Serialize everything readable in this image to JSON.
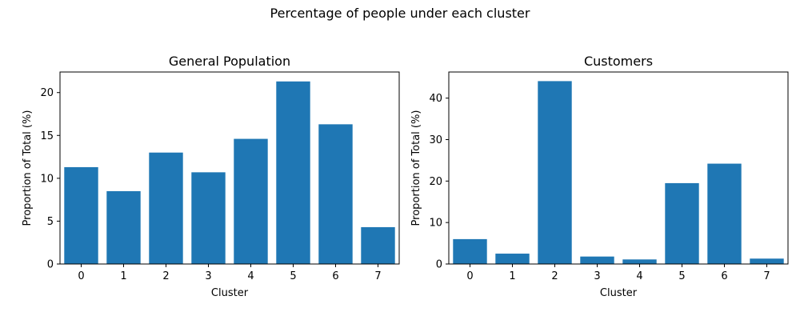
{
  "figure": {
    "suptitle": "Percentage of people under each cluster"
  },
  "chart_data": [
    {
      "type": "bar",
      "title": "General Population",
      "xlabel": "Cluster",
      "ylabel": "Proportion of Total (%)",
      "categories": [
        "0",
        "1",
        "2",
        "3",
        "4",
        "5",
        "6",
        "7"
      ],
      "values": [
        11.3,
        8.5,
        13.0,
        10.7,
        14.6,
        21.3,
        16.3,
        4.3
      ],
      "ylim": [
        0,
        22.4
      ],
      "yticks": [
        0,
        5,
        10,
        15,
        20
      ],
      "color": "#1f77b4",
      "grid": false
    },
    {
      "type": "bar",
      "title": "Customers",
      "xlabel": "Cluster",
      "ylabel": "Proportion of Total (%)",
      "categories": [
        "0",
        "1",
        "2",
        "3",
        "4",
        "5",
        "6",
        "7"
      ],
      "values": [
        6.0,
        2.5,
        44.1,
        1.8,
        1.1,
        19.5,
        24.2,
        1.3
      ],
      "ylim": [
        0,
        46.3
      ],
      "yticks": [
        0,
        10,
        20,
        30,
        40
      ],
      "color": "#1f77b4",
      "grid": false
    }
  ]
}
